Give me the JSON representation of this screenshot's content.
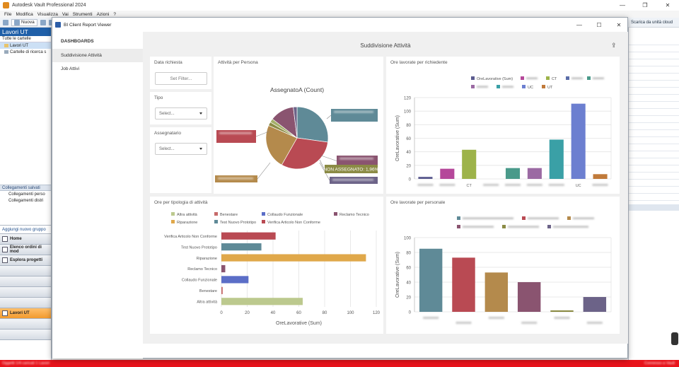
{
  "app": {
    "title": "Autodesk Vault Professional 2024"
  },
  "menu": [
    "File",
    "Modifica",
    "Visualizza",
    "Vai",
    "Strumenti",
    "Azioni",
    "?"
  ],
  "toolbar": {
    "new_label": "Nuova",
    "right_label": "Scarica da unità cloud"
  },
  "left_panel": {
    "title": "Lavori UT",
    "all_folders": "Tutte le cartelle",
    "tree": [
      "Lavori UT",
      "Cartelle di ricerca s"
    ],
    "saved_links_title": "Collegamenti salvati",
    "saved_links": [
      "Collegamenti perso",
      "Collegamenti distri"
    ],
    "add_group": "Aggiungi nuovo gruppo",
    "nav": [
      "Home",
      "Elenco ordini di mod",
      "Esplora progetti"
    ],
    "active_nav": "Lavori UT"
  },
  "status": {
    "left_text": "Oggetti 1/4 caricati 1 Lavori",
    "right_text": "Connesso a Vault"
  },
  "viewer": {
    "title": "BI Client Report Viewer",
    "sidebar_header": "DASHBOARDS",
    "sidebar_items": [
      "Suddivisione Attività",
      "Job Attivi"
    ],
    "dashboard_title": "Suddivisione Attività",
    "filters": {
      "data_title": "Data richiesta",
      "set_filter": "Set Filter...",
      "tipo_title": "Tipo",
      "assegnatario_title": "Assegnatario",
      "select_placeholder": "Select..."
    },
    "pie_panel_title": "Attività per Persona",
    "pie_title": "AssegnatoA (Count)",
    "pie_visible_label": "NON ASSEGNATO: 1,96%",
    "bar1_title": "Ore lavorate per richiedente",
    "hbar_title": "Ore per tipologia di attività",
    "bar2_title": "Ore lavorate per personale"
  },
  "colors": {
    "accent": "#1f5fa8",
    "status": "#e8131b",
    "active_nav": "#f29a2e"
  },
  "chart_data": [
    {
      "type": "pie",
      "title": "AssegnatoA (Count)",
      "labels": [
        "",
        "",
        "",
        "",
        "NON ASSEGNATO",
        "",
        ""
      ],
      "values": [
        27.45,
        31.37,
        23.53,
        1.96,
        1.96,
        12.75,
        1.98
      ],
      "colors": [
        "#5f8a97",
        "#b94a53",
        "#b48a4c",
        "#8b8b45",
        "#a5b06a",
        "#8a5470",
        "#6c6388"
      ]
    },
    {
      "type": "bar",
      "title": "Ore lavorate per richiedente",
      "ylabel": "OreLavorative (Sum)",
      "ylim": [
        0,
        120
      ],
      "yticks": [
        0,
        20,
        40,
        60,
        80,
        100,
        120
      ],
      "legend_visible": [
        "OreLavorative (Sum)",
        "CT",
        "UC",
        "UT"
      ],
      "categories": [
        "",
        "",
        "CT",
        "",
        "",
        "",
        "",
        "UC",
        ""
      ],
      "values": [
        3,
        15,
        43,
        0,
        16,
        16,
        58,
        111,
        7
      ],
      "colors": [
        "#5b5b8f",
        "#b5479a",
        "#9db34a",
        "#5b6da8",
        "#4a9a8a",
        "#9b6aa3",
        "#3aa0a6",
        "#6c7fd0",
        "#c07a3a"
      ]
    },
    {
      "type": "bar",
      "orientation": "horizontal",
      "title": "Ore per tipologia di attività",
      "xlabel": "OreLavorative (Sum)",
      "xlim": [
        0,
        120
      ],
      "xticks": [
        0,
        20,
        40,
        60,
        80,
        100,
        120
      ],
      "categories": [
        "Verifica Articolo Non Conforme",
        "Test Nuovo Prototipo",
        "Riparazione",
        "Reclamo Tecnico",
        "Collaudo Funzionale",
        "Benestare",
        "Altra attività"
      ],
      "values": [
        42,
        31,
        112,
        3,
        21,
        1,
        63
      ],
      "colors": [
        "#b94a53",
        "#5f8a97",
        "#e0a84a",
        "#8a5470",
        "#5b6ec7",
        "#c66a6a",
        "#bcc98e"
      ],
      "legend": [
        "Altra attività",
        "Benestare",
        "Collaudo Funzionale",
        "Reclamo Tecnico",
        "Riparazione",
        "Test Nuovo Prototipo",
        "Verifica Articolo Non Conforme"
      ],
      "legend_colors": [
        "#bcc98e",
        "#c66a6a",
        "#5b6ec7",
        "#8a5470",
        "#e0a84a",
        "#5f8a97",
        "#b94a53"
      ]
    },
    {
      "type": "bar",
      "title": "Ore lavorate per personale",
      "ylabel": "OreLavorative (Sum)",
      "ylim": [
        0,
        100
      ],
      "yticks": [
        0,
        20,
        40,
        60,
        80,
        100
      ],
      "categories": [
        "",
        "",
        "",
        "",
        "",
        ""
      ],
      "values": [
        85,
        73,
        53,
        40,
        2,
        20
      ],
      "colors": [
        "#5f8a97",
        "#b94a53",
        "#b48a4c",
        "#8a5470",
        "#8b8b45",
        "#6c6388"
      ]
    }
  ]
}
